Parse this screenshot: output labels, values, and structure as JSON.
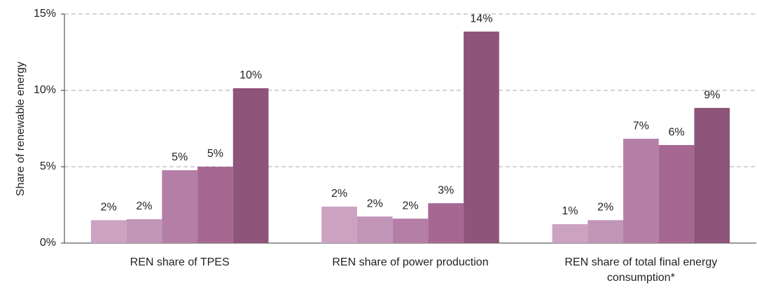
{
  "chart_data": {
    "type": "bar",
    "ylabel": "Share of renewable energy",
    "categories": [
      "REN share of TPES",
      "REN share of power production",
      "REN share of total final energy consumption*"
    ],
    "series": [
      {
        "color": "#cba3c1",
        "values": [
          1.5,
          2.39,
          1.24
        ],
        "value_labels": [
          "2%",
          "2%",
          "1%"
        ]
      },
      {
        "color": "#c095b7",
        "values": [
          1.56,
          1.74,
          1.5
        ],
        "value_labels": [
          "2%",
          "2%",
          "2%"
        ]
      },
      {
        "color": "#b47ea7",
        "values": [
          4.77,
          1.6,
          6.83
        ],
        "value_labels": [
          "5%",
          "2%",
          "7%"
        ]
      },
      {
        "color": "#a66893",
        "values": [
          5.0,
          2.61,
          6.42
        ],
        "value_labels": [
          "5%",
          "3%",
          "6%"
        ]
      },
      {
        "color": "#8e5479",
        "values": [
          10.14,
          13.85,
          8.85
        ],
        "value_labels": [
          "10%",
          "14%",
          "9%"
        ]
      }
    ],
    "ylim": [
      0,
      15
    ],
    "yticks": [
      {
        "value": 0,
        "label": "0%"
      },
      {
        "value": 5,
        "label": "5%"
      },
      {
        "value": 10,
        "label": "10%"
      },
      {
        "value": 15,
        "label": "15%"
      }
    ],
    "grid": true
  }
}
